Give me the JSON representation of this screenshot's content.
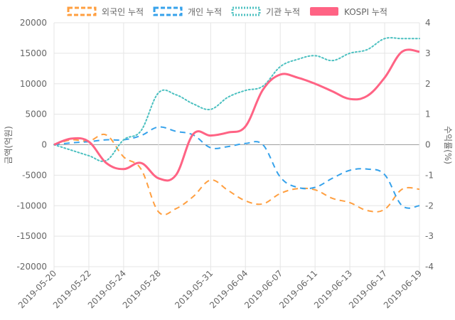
{
  "chart_data": {
    "type": "line",
    "x": [
      "2019-05-20",
      "2019-05-21",
      "2019-05-22",
      "2019-05-23",
      "2019-05-24",
      "2019-05-27",
      "2019-05-28",
      "2019-05-29",
      "2019-05-30",
      "2019-05-31",
      "2019-06-03",
      "2019-06-04",
      "2019-06-05",
      "2019-06-07",
      "2019-06-10",
      "2019-06-11",
      "2019-06-12",
      "2019-06-13",
      "2019-06-14",
      "2019-06-17",
      "2019-06-18",
      "2019-06-19"
    ],
    "x_tick_labels": [
      "2019-05-20",
      "2019-05-22",
      "2019-05-24",
      "2019-05-28",
      "2019-05-31",
      "2019-06-04",
      "2019-06-07",
      "2019-06-11",
      "2019-06-13",
      "2019-06-17",
      "2019-06-19"
    ],
    "series": [
      {
        "name": "외국인 누적",
        "axis": "left",
        "style": "dashed",
        "color": "#ff9f40",
        "values": [
          0,
          800,
          600,
          1600,
          -2000,
          -4000,
          -11000,
          -10500,
          -8500,
          -5800,
          -7500,
          -9200,
          -9700,
          -8000,
          -7200,
          -7400,
          -8800,
          -9500,
          -10800,
          -10600,
          -7300,
          -7300
        ]
      },
      {
        "name": "개인 누적",
        "axis": "left",
        "style": "dashed",
        "color": "#36a2eb",
        "values": [
          0,
          300,
          500,
          800,
          800,
          1500,
          2900,
          2200,
          1600,
          -500,
          -300,
          200,
          0,
          -5300,
          -7000,
          -7000,
          -5500,
          -4200,
          -4000,
          -4900,
          -10000,
          -10000
        ]
      },
      {
        "name": "기관 누적",
        "axis": "left",
        "style": "dotted",
        "color": "#4bc0c0",
        "values": [
          0,
          -900,
          -1800,
          -2600,
          800,
          2300,
          8500,
          8200,
          6700,
          5800,
          7800,
          8900,
          9600,
          12800,
          14000,
          14600,
          13800,
          15000,
          15600,
          17400,
          17400,
          17400
        ]
      },
      {
        "name": "KOSPI 누적",
        "axis": "right",
        "style": "solid",
        "color": "#ff6384",
        "values": [
          0,
          0.2,
          0.1,
          -0.6,
          -0.8,
          -0.6,
          -1.1,
          -1.0,
          0.35,
          0.3,
          0.4,
          0.6,
          1.8,
          2.3,
          2.2,
          2.0,
          1.75,
          1.5,
          1.6,
          2.2,
          3.05,
          3.05
        ]
      }
    ],
    "legend_position": "top",
    "ylabel_left": "금액(억원)",
    "ylabel_right": "수익률(%)",
    "ylim_left": [
      -20000,
      20000
    ],
    "yticks_left": [
      20000,
      15000,
      10000,
      5000,
      0,
      -5000,
      -10000,
      -15000,
      -20000
    ],
    "ylim_right": [
      -4,
      4
    ],
    "yticks_right": [
      4,
      3,
      2,
      1,
      0,
      -1,
      -2,
      -3,
      -4
    ],
    "grid": true
  }
}
